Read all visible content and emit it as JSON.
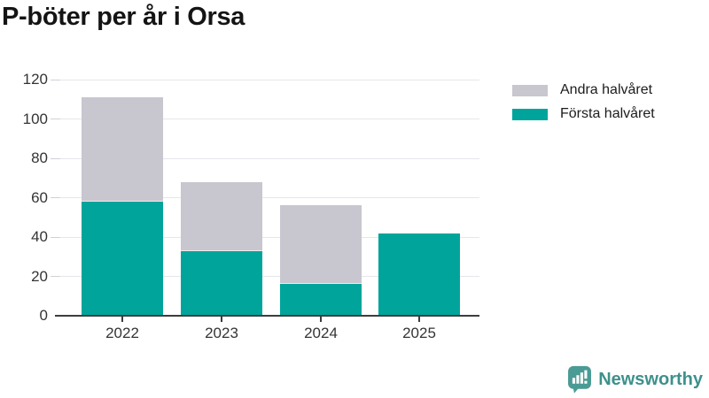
{
  "chart_data": {
    "type": "bar",
    "stacked": true,
    "title": "P-böter per år i Orsa",
    "categories": [
      "2022",
      "2023",
      "2024",
      "2025"
    ],
    "series": [
      {
        "name": "Första halvåret",
        "color": "#00a49b",
        "values": [
          58,
          33,
          16,
          42
        ]
      },
      {
        "name": "Andra halvåret",
        "color": "#c8c6ce",
        "values": [
          53,
          35,
          40,
          0
        ]
      }
    ],
    "xlabel": "",
    "ylabel": "",
    "ylim": [
      0,
      120
    ],
    "yticks": [
      0,
      20,
      40,
      60,
      80,
      100,
      120
    ],
    "grid": true,
    "legend_position": "top-right",
    "legend": [
      {
        "label": "Andra halvåret",
        "color": "#c8c6ce"
      },
      {
        "label": "Första halvåret",
        "color": "#00a49b"
      }
    ]
  },
  "colors": {
    "first_half": "#00a49b",
    "second_half": "#c8c6ce",
    "axis": "#3d3d3d",
    "grid": "#e7e5ea",
    "title_text": "#141414",
    "brand_text": "#3e918b",
    "brand_icon": "#4a9b95"
  },
  "footer": {
    "brand": "Newsworthy"
  }
}
